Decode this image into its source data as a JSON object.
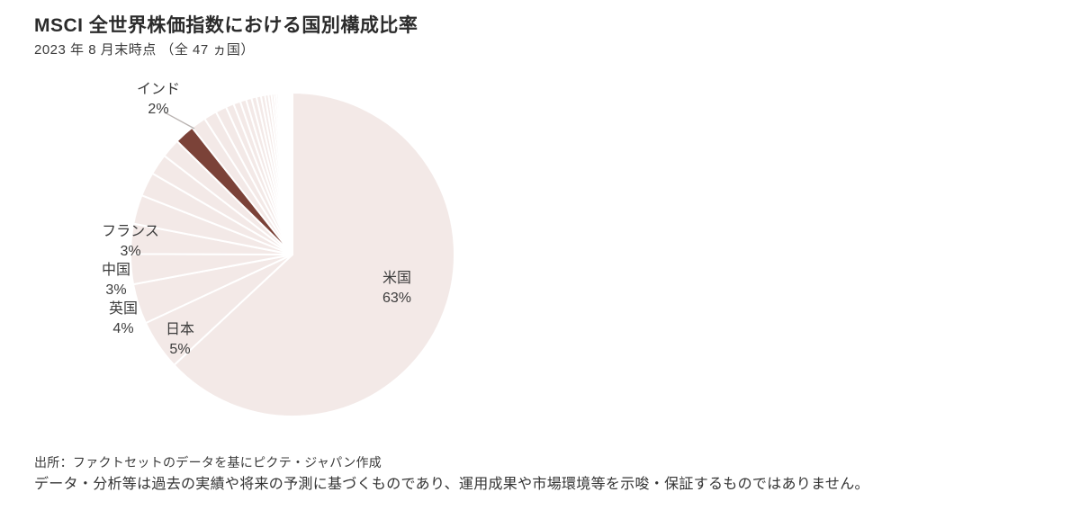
{
  "header": {
    "title": "MSCI 全世界株価指数における国別構成比率",
    "subtitle": "2023 年 8 月末時点 （全 47 ヵ国）"
  },
  "chart_data": {
    "type": "pie",
    "title": "MSCI 全世界株価指数における国別構成比率",
    "subtitle": "2023 年 8 月末時点 （全 47 ヵ国）",
    "total_countries": 47,
    "start_angle": "12 o'clock, clockwise",
    "legend_position": "none",
    "labeled_slices": [
      {
        "label": "米国",
        "pct": "63%",
        "value": 63,
        "highlighted": false,
        "label_placement": "inside"
      },
      {
        "label": "日本",
        "pct": "5%",
        "value": 5,
        "highlighted": false,
        "label_placement": "outside"
      },
      {
        "label": "英国",
        "pct": "4%",
        "value": 4,
        "highlighted": false,
        "label_placement": "outside"
      },
      {
        "label": "中国",
        "pct": "3%",
        "value": 3,
        "highlighted": false,
        "label_placement": "outside"
      },
      {
        "label": "フランス",
        "pct": "3%",
        "value": 3,
        "highlighted": false,
        "label_placement": "outside"
      },
      {
        "label": "インド",
        "pct": "2%",
        "value": 2,
        "highlighted": true,
        "label_placement": "outside-with-leader-line"
      }
    ],
    "segments_clockwise": [
      {
        "v": 63,
        "label": "米国"
      },
      {
        "v": 5,
        "label": "日本"
      },
      {
        "v": 4,
        "label": "英国"
      },
      {
        "v": 3,
        "label": "中国"
      },
      {
        "v": 3,
        "label": "フランス"
      },
      {
        "v": 2.9
      },
      {
        "v": 2.4
      },
      {
        "v": 2.1
      },
      {
        "v": 1.9
      },
      {
        "v": 2,
        "label": "インド",
        "dark": true
      },
      {
        "v": 1.5
      },
      {
        "v": 1.3
      },
      {
        "v": 1.1
      },
      {
        "v": 0.8
      },
      {
        "v": 0.7
      },
      {
        "v": 0.6
      },
      {
        "v": 0.55
      },
      {
        "v": 0.5
      },
      {
        "v": 0.45
      },
      {
        "v": 0.4
      },
      {
        "v": 0.35
      },
      {
        "v": 0.3
      },
      {
        "v": 0.25
      },
      {
        "v": 0.22
      },
      {
        "v": 0.2
      },
      {
        "v": 0.18
      },
      {
        "v": 0.16
      },
      {
        "v": 0.14
      },
      {
        "v": 0.12
      },
      {
        "v": 0.1
      },
      {
        "v": 0.09
      },
      {
        "v": 0.08
      },
      {
        "v": 0.07
      },
      {
        "v": 0.06
      },
      {
        "v": 0.055
      },
      {
        "v": 0.05
      },
      {
        "v": 0.045
      },
      {
        "v": 0.04
      },
      {
        "v": 0.035
      },
      {
        "v": 0.03
      },
      {
        "v": 0.028
      },
      {
        "v": 0.026
      },
      {
        "v": 0.024
      },
      {
        "v": 0.022
      },
      {
        "v": 0.02
      },
      {
        "v": 0.018
      },
      {
        "v": 0.016
      }
    ],
    "colors": {
      "base": "#f3e9e7",
      "highlight": "#7b4238",
      "gap": "#ffffff",
      "leader_line": "#b9b3b1",
      "label_text": "#3c3c3c"
    }
  },
  "footer": {
    "source": "出所：ファクトセットのデータを基にピクテ・ジャパン作成",
    "disclaimer": "データ・分析等は過去の実績や将来の予測に基づくものであり、運用成果や市場環境等を示唆・保証するものではありません。"
  }
}
